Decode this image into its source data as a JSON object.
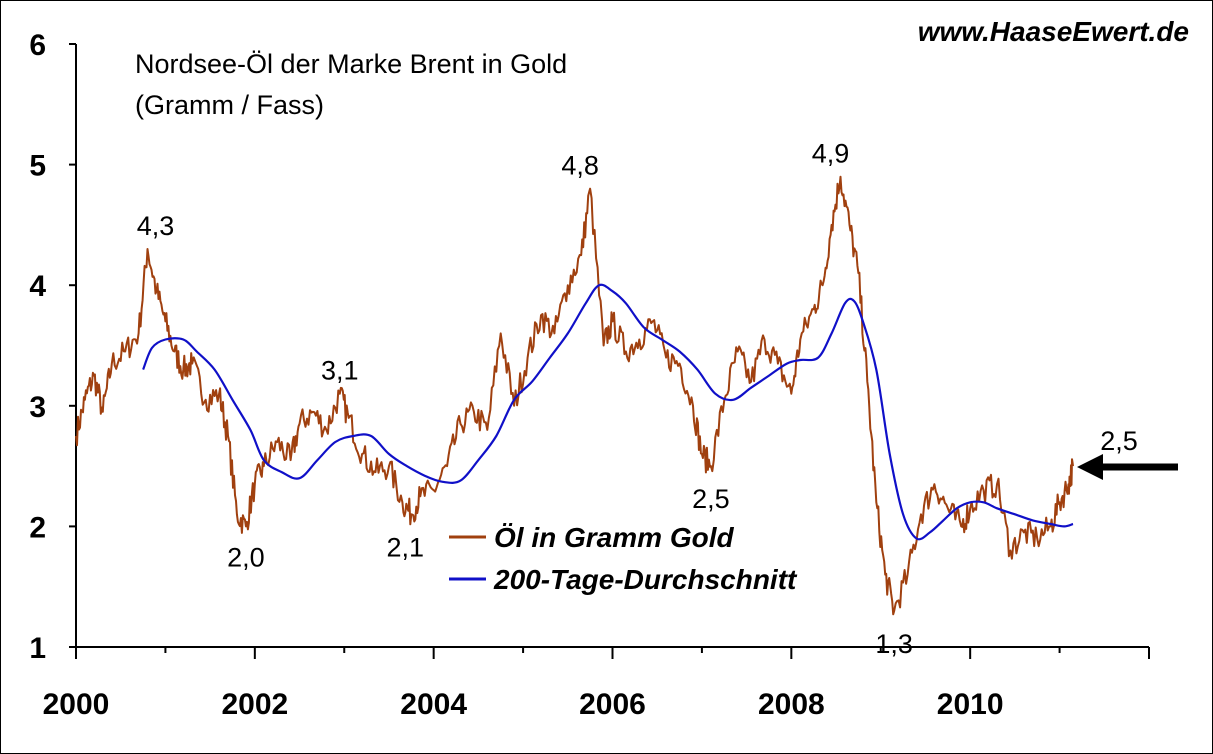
{
  "chart_data": {
    "type": "line",
    "title": "Nordsee-Öl der Marke Brent in Gold",
    "subtitle": "(Gramm / Fass)",
    "source": "www.HaaseEwert.de",
    "xlim": [
      2000,
      2012.0
    ],
    "ylim": [
      1,
      6
    ],
    "x_ticks": [
      "2000",
      "2002",
      "2004",
      "2006",
      "2008",
      "2010"
    ],
    "y_ticks": [
      "1",
      "2",
      "3",
      "4",
      "5",
      "6"
    ],
    "grid": false,
    "legend_position": "center",
    "colors": {
      "oil": "#A0400F",
      "ma": "#1010C8",
      "axis": "#000000"
    },
    "series": [
      {
        "name": "Öl in Gramm Gold",
        "x": [
          2000.0,
          2000.1,
          2000.2,
          2000.3,
          2000.4,
          2000.55,
          2000.7,
          2000.8,
          2000.9,
          2001.0,
          2001.1,
          2001.2,
          2001.3,
          2001.45,
          2001.6,
          2001.7,
          2001.8,
          2001.9,
          2002.0,
          2002.1,
          2002.25,
          2002.4,
          2002.5,
          2002.65,
          2002.8,
          2002.95,
          2003.05,
          2003.2,
          2003.35,
          2003.5,
          2003.65,
          2003.75,
          2003.85,
          2004.0,
          2004.15,
          2004.3,
          2004.45,
          2004.6,
          2004.75,
          2004.9,
          2005.05,
          2005.2,
          2005.35,
          2005.5,
          2005.65,
          2005.75,
          2005.9,
          2006.0,
          2006.15,
          2006.3,
          2006.45,
          2006.6,
          2006.75,
          2006.9,
          2007.0,
          2007.1,
          2007.25,
          2007.4,
          2007.55,
          2007.7,
          2007.85,
          2008.0,
          2008.1,
          2008.25,
          2008.35,
          2008.45,
          2008.55,
          2008.65,
          2008.75,
          2008.85,
          2008.95,
          2009.05,
          2009.15,
          2009.3,
          2009.45,
          2009.6,
          2009.75,
          2009.9,
          2010.0,
          2010.15,
          2010.3,
          2010.45,
          2010.6,
          2010.75,
          2010.9,
          2011.0,
          2011.1,
          2011.15
        ],
        "y": [
          2.75,
          3.05,
          3.25,
          2.95,
          3.35,
          3.45,
          3.6,
          4.3,
          3.95,
          3.7,
          3.45,
          3.3,
          3.35,
          3.05,
          3.1,
          2.75,
          2.1,
          2.0,
          2.35,
          2.5,
          2.7,
          2.55,
          2.85,
          2.95,
          2.8,
          3.1,
          2.9,
          2.6,
          2.45,
          2.5,
          2.2,
          2.1,
          2.25,
          2.3,
          2.5,
          2.85,
          2.95,
          2.8,
          3.6,
          3.0,
          3.4,
          3.75,
          3.6,
          4.0,
          4.25,
          4.8,
          3.5,
          3.7,
          3.45,
          3.55,
          3.7,
          3.4,
          3.35,
          3.0,
          2.6,
          2.5,
          3.05,
          3.45,
          3.2,
          3.55,
          3.35,
          3.1,
          3.55,
          3.8,
          4.0,
          4.5,
          4.9,
          4.5,
          4.1,
          3.2,
          2.2,
          1.6,
          1.3,
          1.6,
          2.1,
          2.35,
          2.15,
          2.0,
          2.15,
          2.3,
          2.35,
          1.8,
          1.95,
          1.9,
          2.0,
          2.2,
          2.35,
          2.5
        ]
      },
      {
        "name": "200-Tage-Durchschnitt",
        "x": [
          2000.75,
          2000.85,
          2001.0,
          2001.2,
          2001.35,
          2001.55,
          2001.75,
          2001.95,
          2002.1,
          2002.3,
          2002.5,
          2002.7,
          2002.9,
          2003.1,
          2003.3,
          2003.5,
          2003.7,
          2003.9,
          2004.1,
          2004.3,
          2004.5,
          2004.7,
          2004.9,
          2005.1,
          2005.3,
          2005.5,
          2005.7,
          2005.85,
          2006.0,
          2006.15,
          2006.35,
          2006.55,
          2006.75,
          2006.95,
          2007.15,
          2007.35,
          2007.55,
          2007.75,
          2007.95,
          2008.1,
          2008.3,
          2008.45,
          2008.6,
          2008.7,
          2008.8,
          2008.95,
          2009.1,
          2009.25,
          2009.4,
          2009.55,
          2009.7,
          2009.85,
          2010.0,
          2010.15,
          2010.3,
          2010.5,
          2010.7,
          2010.9,
          2011.05,
          2011.15
        ],
        "y": [
          3.3,
          3.48,
          3.55,
          3.55,
          3.45,
          3.3,
          3.05,
          2.8,
          2.55,
          2.45,
          2.4,
          2.55,
          2.7,
          2.75,
          2.75,
          2.6,
          2.5,
          2.42,
          2.37,
          2.38,
          2.55,
          2.75,
          3.05,
          3.2,
          3.4,
          3.6,
          3.85,
          4.0,
          3.95,
          3.85,
          3.65,
          3.55,
          3.45,
          3.3,
          3.1,
          3.05,
          3.15,
          3.25,
          3.35,
          3.38,
          3.4,
          3.6,
          3.85,
          3.87,
          3.7,
          3.3,
          2.6,
          2.1,
          1.9,
          1.95,
          2.05,
          2.15,
          2.2,
          2.2,
          2.15,
          2.1,
          2.05,
          2.02,
          2.0,
          2.02
        ]
      }
    ],
    "annotations": [
      {
        "text": "4,3",
        "x": 2000.8,
        "y": 4.3
      },
      {
        "text": "2,0",
        "x": 2001.9,
        "y": 2.0
      },
      {
        "text": "3,1",
        "x": 2002.95,
        "y": 3.1
      },
      {
        "text": "2,1",
        "x": 2003.75,
        "y": 2.1
      },
      {
        "text": "4,8",
        "x": 2005.75,
        "y": 4.8
      },
      {
        "text": "2,5",
        "x": 2007.1,
        "y": 2.5
      },
      {
        "text": "4,9",
        "x": 2008.55,
        "y": 4.9
      },
      {
        "text": "1,3",
        "x": 2009.15,
        "y": 1.3
      },
      {
        "text": "2,5",
        "x": 2011.15,
        "y": 2.5
      }
    ]
  }
}
